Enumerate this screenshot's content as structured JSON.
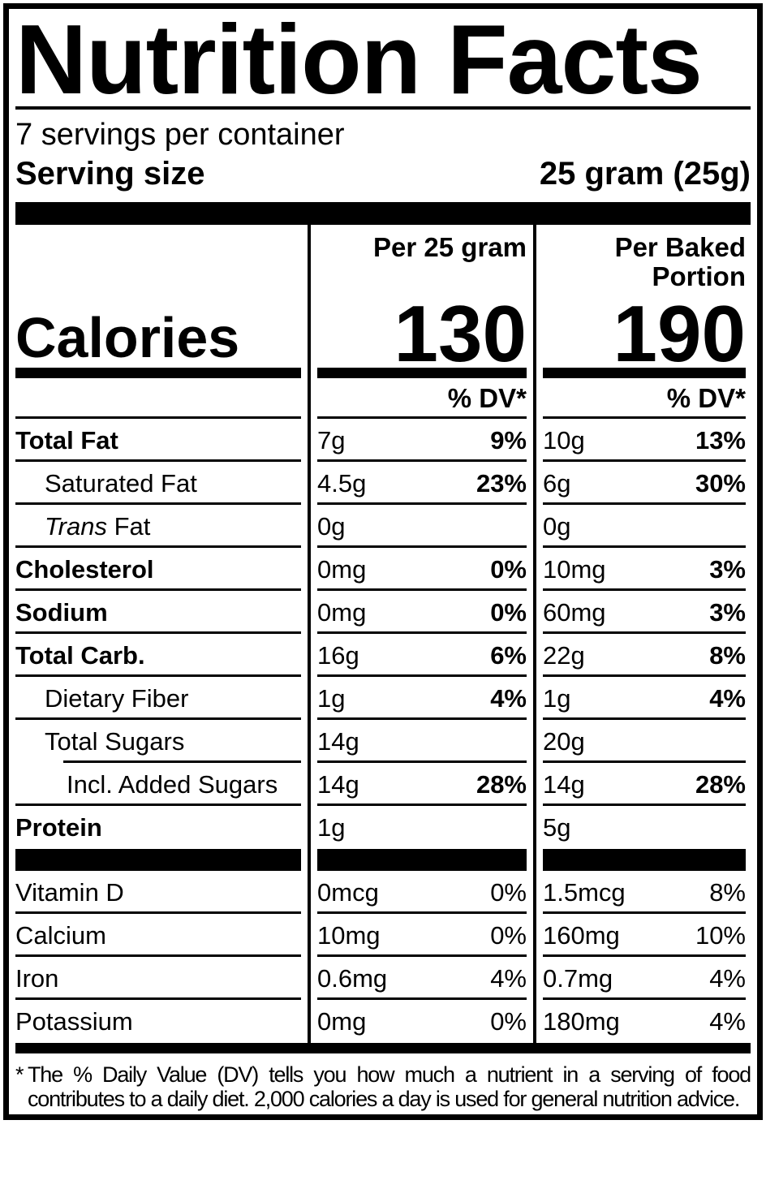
{
  "label": {
    "title": "Nutrition Facts",
    "servings_per_container": "7 servings per container",
    "serving_size_label": "Serving size",
    "serving_size_value": "25 gram (25g)"
  },
  "calories": {
    "label": "Calories",
    "col1_header": "Per 25 gram",
    "col2_header": "Per Baked Portion",
    "col1_value": "130",
    "col2_value": "190",
    "dv_header": "% DV*"
  },
  "nutrients": [
    {
      "name": "Total Fat",
      "col1_amount": "7g",
      "col1_dv": "9%",
      "col2_amount": "10g",
      "col2_dv": "13%"
    },
    {
      "name": "Saturated Fat",
      "col1_amount": "4.5g",
      "col1_dv": "23%",
      "col2_amount": "6g",
      "col2_dv": "30%"
    },
    {
      "name_italic": "Trans",
      "name": " Fat",
      "col1_amount": "0g",
      "col1_dv": "",
      "col2_amount": "0g",
      "col2_dv": ""
    },
    {
      "name": "Cholesterol",
      "col1_amount": "0mg",
      "col1_dv": "0%",
      "col2_amount": "10mg",
      "col2_dv": "3%"
    },
    {
      "name": "Sodium",
      "col1_amount": "0mg",
      "col1_dv": "0%",
      "col2_amount": "60mg",
      "col2_dv": "3%"
    },
    {
      "name": "Total Carb.",
      "col1_amount": "16g",
      "col1_dv": "6%",
      "col2_amount": "22g",
      "col2_dv": "8%"
    },
    {
      "name": "Dietary Fiber",
      "col1_amount": "1g",
      "col1_dv": "4%",
      "col2_amount": "1g",
      "col2_dv": "4%"
    },
    {
      "name": "Total Sugars",
      "col1_amount": "14g",
      "col1_dv": "",
      "col2_amount": "20g",
      "col2_dv": ""
    },
    {
      "name": "Incl. Added Sugars",
      "col1_amount": "14g",
      "col1_dv": "28%",
      "col2_amount": "14g",
      "col2_dv": "28%"
    },
    {
      "name": "Protein",
      "col1_amount": "1g",
      "col1_dv": "",
      "col2_amount": "5g",
      "col2_dv": ""
    }
  ],
  "micronutrients": [
    {
      "name": "Vitamin D",
      "col1_amount": "0mcg",
      "col1_dv": "0%",
      "col2_amount": "1.5mcg",
      "col2_dv": "8%"
    },
    {
      "name": "Calcium",
      "col1_amount": "10mg",
      "col1_dv": "0%",
      "col2_amount": "160mg",
      "col2_dv": "10%"
    },
    {
      "name": "Iron",
      "col1_amount": "0.6mg",
      "col1_dv": "4%",
      "col2_amount": "0.7mg",
      "col2_dv": "4%"
    },
    {
      "name": "Potassium",
      "col1_amount": "0mg",
      "col1_dv": "0%",
      "col2_amount": "180mg",
      "col2_dv": "4%"
    }
  ],
  "footnote": {
    "star": "*",
    "line1": "The % Daily Value (DV) tells you how much a nutrient in a serving of food",
    "line2": "contributes to a daily diet. 2,000 calories a day is used for general nutrition advice."
  },
  "colors": {
    "ink": "#000000",
    "background": "#ffffff"
  }
}
